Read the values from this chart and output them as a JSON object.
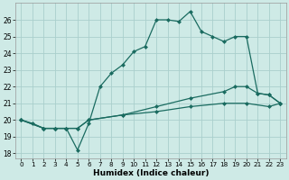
{
  "xlabel": "Humidex (Indice chaleur)",
  "bg_color": "#ceeae6",
  "grid_color": "#aacfcc",
  "line_color": "#1a6b60",
  "xlim": [
    -0.5,
    23.5
  ],
  "ylim": [
    17.7,
    27.0
  ],
  "yticks": [
    18,
    19,
    20,
    21,
    22,
    23,
    24,
    25,
    26
  ],
  "xticks": [
    0,
    1,
    2,
    3,
    4,
    5,
    6,
    7,
    8,
    9,
    10,
    11,
    12,
    13,
    14,
    15,
    16,
    17,
    18,
    19,
    20,
    21,
    22,
    23
  ],
  "series1": [
    [
      0,
      20.0
    ],
    [
      1,
      19.8
    ],
    [
      2,
      19.5
    ],
    [
      3,
      19.5
    ],
    [
      4,
      19.5
    ],
    [
      5,
      18.2
    ],
    [
      6,
      19.8
    ],
    [
      7,
      22.0
    ],
    [
      8,
      22.8
    ],
    [
      9,
      23.3
    ],
    [
      10,
      24.1
    ],
    [
      11,
      24.4
    ],
    [
      12,
      26.0
    ],
    [
      13,
      26.0
    ],
    [
      14,
      25.9
    ],
    [
      15,
      26.5
    ],
    [
      16,
      25.3
    ],
    [
      17,
      25.0
    ],
    [
      18,
      24.7
    ],
    [
      19,
      25.0
    ],
    [
      20,
      25.0
    ],
    [
      21,
      21.6
    ],
    [
      22,
      21.5
    ],
    [
      23,
      21.0
    ]
  ],
  "series2": [
    [
      0,
      20.0
    ],
    [
      1,
      19.8
    ],
    [
      2,
      19.5
    ],
    [
      3,
      19.5
    ],
    [
      4,
      19.5
    ],
    [
      5,
      18.2
    ],
    [
      6,
      19.8
    ],
    [
      7,
      22.0
    ],
    [
      8,
      22.8
    ],
    [
      9,
      23.3
    ],
    [
      10,
      24.1
    ],
    [
      11,
      24.4
    ],
    [
      12,
      26.0
    ],
    [
      13,
      26.0
    ],
    [
      14,
      25.9
    ],
    [
      15,
      26.5
    ],
    [
      16,
      25.3
    ],
    [
      17,
      25.0
    ],
    [
      18,
      24.7
    ]
  ],
  "series3": [
    [
      0,
      20.0
    ],
    [
      2,
      19.5
    ],
    [
      3,
      19.5
    ],
    [
      4,
      19.5
    ],
    [
      5,
      19.5
    ],
    [
      6,
      20.0
    ],
    [
      9,
      20.3
    ],
    [
      12,
      20.8
    ],
    [
      15,
      21.3
    ],
    [
      18,
      21.7
    ],
    [
      19,
      22.0
    ],
    [
      20,
      22.0
    ],
    [
      21,
      21.6
    ],
    [
      22,
      21.5
    ],
    [
      23,
      21.0
    ]
  ],
  "series4": [
    [
      0,
      20.0
    ],
    [
      2,
      19.5
    ],
    [
      3,
      19.5
    ],
    [
      4,
      19.5
    ],
    [
      5,
      19.5
    ],
    [
      6,
      20.0
    ],
    [
      9,
      20.3
    ],
    [
      12,
      20.5
    ],
    [
      15,
      20.8
    ],
    [
      18,
      21.0
    ],
    [
      20,
      21.0
    ],
    [
      22,
      20.8
    ],
    [
      23,
      21.0
    ]
  ]
}
